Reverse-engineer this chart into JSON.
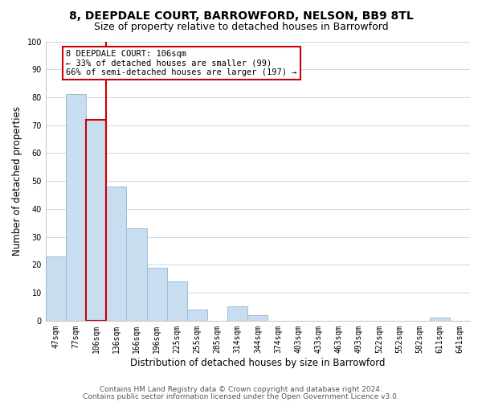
{
  "title": "8, DEEPDALE COURT, BARROWFORD, NELSON, BB9 8TL",
  "subtitle": "Size of property relative to detached houses in Barrowford",
  "xlabel": "Distribution of detached houses by size in Barrowford",
  "ylabel": "Number of detached properties",
  "bar_labels": [
    "47sqm",
    "77sqm",
    "106sqm",
    "136sqm",
    "166sqm",
    "196sqm",
    "225sqm",
    "255sqm",
    "285sqm",
    "314sqm",
    "344sqm",
    "374sqm",
    "403sqm",
    "433sqm",
    "463sqm",
    "493sqm",
    "522sqm",
    "552sqm",
    "582sqm",
    "611sqm",
    "641sqm"
  ],
  "bar_values": [
    23,
    81,
    72,
    48,
    33,
    19,
    14,
    4,
    0,
    5,
    2,
    0,
    0,
    0,
    0,
    0,
    0,
    0,
    0,
    1,
    0
  ],
  "bar_color": "#c8ddf0",
  "bar_edge_color": "#9bbcd8",
  "highlight_bar_index": 2,
  "highlight_line_color": "#cc0000",
  "annotation_text": "8 DEEPDALE COURT: 106sqm\n← 33% of detached houses are smaller (99)\n66% of semi-detached houses are larger (197) →",
  "annotation_box_edge": "#cc0000",
  "annotation_box_fill": "#ffffff",
  "ylim": [
    0,
    100
  ],
  "yticks": [
    0,
    10,
    20,
    30,
    40,
    50,
    60,
    70,
    80,
    90,
    100
  ],
  "footer_line1": "Contains HM Land Registry data © Crown copyright and database right 2024.",
  "footer_line2": "Contains public sector information licensed under the Open Government Licence v3.0.",
  "title_fontsize": 10,
  "subtitle_fontsize": 9,
  "xlabel_fontsize": 8.5,
  "ylabel_fontsize": 8.5,
  "tick_fontsize": 7,
  "footer_fontsize": 6.5,
  "annotation_fontsize": 7.5,
  "background_color": "#ffffff",
  "grid_color": "#c8d8e8"
}
